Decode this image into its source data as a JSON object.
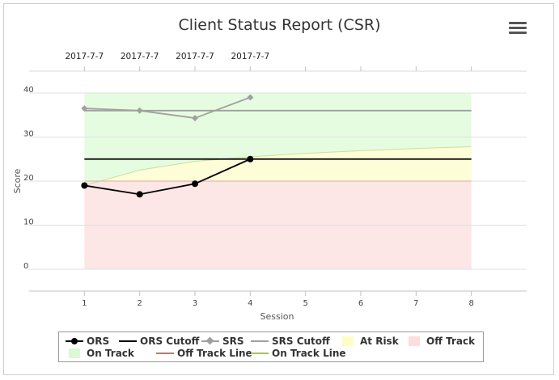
{
  "chart_data": {
    "type": "line",
    "title": "Client Status Report (CSR)",
    "xlabel": "Session",
    "ylabel": "Score",
    "x": [
      1,
      2,
      3,
      4,
      5,
      6,
      7,
      8
    ],
    "xlim": [
      0,
      9
    ],
    "ylim": [
      0,
      40
    ],
    "yticks": [
      0,
      10,
      20,
      30,
      40
    ],
    "top_axis_labels": [
      {
        "session": 1,
        "label": "2017-7-7"
      },
      {
        "session": 2,
        "label": "2017-7-7"
      },
      {
        "session": 3,
        "label": "2017-7-7"
      },
      {
        "session": 4,
        "label": "2017-7-7"
      }
    ],
    "series": [
      {
        "name": "ORS",
        "x": [
          1,
          2,
          3,
          4
        ],
        "values": [
          19,
          17,
          19.4,
          25
        ],
        "color": "#000000",
        "marker": "circle"
      },
      {
        "name": "ORS Cutoff",
        "x": [
          1,
          8
        ],
        "values": [
          25,
          25
        ],
        "color": "#000000"
      },
      {
        "name": "SRS",
        "x": [
          1,
          2,
          3,
          4
        ],
        "values": [
          36.5,
          36,
          34.3,
          39
        ],
        "color": "#a0a0a0",
        "marker": "diamond"
      },
      {
        "name": "SRS Cutoff",
        "x": [
          1,
          8
        ],
        "values": [
          36,
          36
        ],
        "color": "#a0a0a0"
      },
      {
        "name": "Off Track Line",
        "x": [
          1,
          8
        ],
        "values": [
          20,
          20
        ],
        "color": "#d9b0a0"
      },
      {
        "name": "On Track Line",
        "x": [
          1,
          2,
          3,
          4,
          5,
          6,
          7,
          8
        ],
        "values": [
          19,
          22.5,
          24.5,
          25.5,
          26.3,
          26.9,
          27.4,
          27.8
        ],
        "color": "#c8e0a0"
      }
    ],
    "bands": {
      "on_track": {
        "name": "On Track",
        "color": "#e6fce1",
        "x": [
          1,
          8
        ],
        "top": 40
      },
      "at_risk": {
        "name": "At Risk",
        "color": "#fdfdd7"
      },
      "off_track": {
        "name": "Off Track",
        "color": "#fce6e6",
        "x": [
          1,
          8
        ],
        "bottom": 0,
        "top": 20
      }
    },
    "legend": {
      "position": "bottom",
      "entries": [
        {
          "name": "ORS",
          "symbol": "line-dot",
          "color": "#000000"
        },
        {
          "name": "ORS Cutoff",
          "symbol": "line",
          "color": "#000000"
        },
        {
          "name": "SRS",
          "symbol": "line-diamond",
          "color": "#a0a0a0"
        },
        {
          "name": "SRS Cutoff",
          "symbol": "line",
          "color": "#a0a0a0"
        },
        {
          "name": "At Risk",
          "symbol": "box",
          "color": "#fdfdc6"
        },
        {
          "name": "Off Track",
          "symbol": "box",
          "color": "#fcdede"
        },
        {
          "name": "On Track",
          "symbol": "box",
          "color": "#dcf8d6"
        },
        {
          "name": "Off Track Line",
          "symbol": "line",
          "color": "#b08070"
        },
        {
          "name": "On Track Line",
          "symbol": "line",
          "color": "#a8c060"
        }
      ]
    },
    "grid": true
  },
  "icons": {
    "menu": "hamburger-menu-icon"
  }
}
